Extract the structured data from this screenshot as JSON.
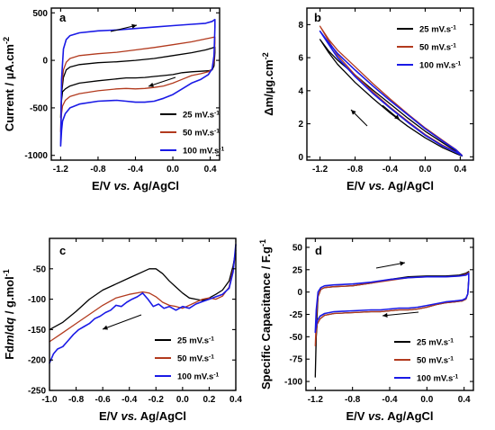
{
  "chart_data": [
    {
      "panel": "a",
      "type": "line",
      "xlabel": "E/V vs. Ag/AgCl",
      "ylabel": "Current / µA.cm-2",
      "xlim": [
        -1.3,
        0.5
      ],
      "ylim": [
        -1050,
        550
      ],
      "xticks": [
        -1.2,
        -0.8,
        -0.4,
        0.0,
        0.4
      ],
      "xtick_labels": [
        "-1.2",
        "-0.8",
        "-0.4",
        "0.0",
        "0.4"
      ],
      "yticks": [
        500,
        0,
        -500,
        -1000
      ],
      "ytick_labels": [
        "500",
        "0",
        "-500",
        "-1000"
      ],
      "legend_position": "bottom-right",
      "series": [
        {
          "name": "25 mV.s-1",
          "color": "#000000",
          "x": [
            -1.2,
            -1.19,
            -1.17,
            -1.14,
            -1.1,
            -1.0,
            -0.8,
            -0.6,
            -0.4,
            -0.2,
            0.0,
            0.2,
            0.35,
            0.42,
            0.45,
            0.45,
            0.44,
            0.42,
            0.38,
            0.3,
            0.2,
            0.1,
            0.0,
            -0.1,
            -0.2,
            -0.3,
            -0.4,
            -0.5,
            -0.6,
            -0.8,
            -1.0,
            -1.1,
            -1.15,
            -1.18,
            -1.19,
            -1.2
          ],
          "y": [
            -600,
            -350,
            -180,
            -100,
            -70,
            -45,
            -25,
            -15,
            0,
            20,
            50,
            80,
            110,
            130,
            140,
            80,
            -60,
            -100,
            -110,
            -115,
            -120,
            -130,
            -150,
            -160,
            -170,
            -180,
            -185,
            -185,
            -195,
            -215,
            -240,
            -270,
            -300,
            -330,
            -420,
            -600
          ]
        },
        {
          "name": "50 mV.s-1",
          "color": "#b23a1e",
          "x": [
            -1.2,
            -1.19,
            -1.17,
            -1.14,
            -1.1,
            -1.0,
            -0.8,
            -0.6,
            -0.4,
            -0.2,
            0.0,
            0.2,
            0.35,
            0.42,
            0.45,
            0.45,
            0.44,
            0.42,
            0.38,
            0.3,
            0.2,
            0.1,
            0.0,
            -0.1,
            -0.2,
            -0.3,
            -0.4,
            -0.5,
            -0.6,
            -0.8,
            -1.0,
            -1.1,
            -1.15,
            -1.18,
            -1.19,
            -1.2
          ],
          "y": [
            -750,
            -300,
            -100,
            -20,
            20,
            50,
            70,
            85,
            110,
            135,
            165,
            195,
            225,
            240,
            245,
            180,
            -10,
            -90,
            -120,
            -140,
            -160,
            -200,
            -240,
            -270,
            -285,
            -295,
            -300,
            -295,
            -300,
            -320,
            -350,
            -380,
            -420,
            -480,
            -560,
            -750
          ]
        },
        {
          "name": "100 mV.s-1",
          "color": "#1a1ae6",
          "x": [
            -1.2,
            -1.19,
            -1.17,
            -1.14,
            -1.1,
            -1.0,
            -0.8,
            -0.6,
            -0.4,
            -0.2,
            0.0,
            0.2,
            0.35,
            0.42,
            0.45,
            0.45,
            0.44,
            0.42,
            0.38,
            0.3,
            0.2,
            0.1,
            0.0,
            -0.1,
            -0.2,
            -0.3,
            -0.4,
            -0.5,
            -0.6,
            -0.8,
            -1.0,
            -1.1,
            -1.15,
            -1.18,
            -1.19,
            -1.2
          ],
          "y": [
            -900,
            -200,
            120,
            220,
            260,
            290,
            310,
            320,
            335,
            350,
            365,
            380,
            390,
            410,
            430,
            350,
            50,
            -90,
            -150,
            -200,
            -240,
            -300,
            -360,
            -400,
            -430,
            -440,
            -440,
            -430,
            -420,
            -430,
            -460,
            -500,
            -560,
            -640,
            -740,
            -900
          ]
        }
      ]
    },
    {
      "panel": "b",
      "type": "line",
      "xlabel": "E/V vs. Ag/AgCl",
      "ylabel": "Δm/µg.cm-2",
      "xlim": [
        -1.35,
        0.55
      ],
      "ylim": [
        -0.2,
        9.0
      ],
      "xticks": [
        -1.2,
        -0.8,
        -0.4,
        0.0,
        0.4
      ],
      "xtick_labels": [
        "-1.2",
        "-0.8",
        "-0.4",
        "0.0",
        "0.4"
      ],
      "yticks": [
        0,
        2,
        4,
        6,
        8
      ],
      "ytick_labels": [
        "0",
        "2",
        "4",
        "6",
        "8"
      ],
      "legend_position": "top-right",
      "series": [
        {
          "name": "25 mV.s-1",
          "color": "#000000",
          "x": [
            -1.2,
            -1.1,
            -1.0,
            -0.8,
            -0.6,
            -0.4,
            -0.2,
            0.0,
            0.2,
            0.35,
            0.42,
            0.42,
            0.35,
            0.2,
            0.0,
            -0.2,
            -0.4,
            -0.6,
            -0.8,
            -1.0,
            -1.1,
            -1.2
          ],
          "y": [
            7.1,
            6.3,
            5.6,
            4.5,
            3.55,
            2.65,
            1.85,
            1.15,
            0.55,
            0.2,
            0.05,
            0.05,
            0.35,
            0.85,
            1.55,
            2.35,
            3.2,
            4.05,
            4.95,
            5.85,
            6.4,
            7.1
          ]
        },
        {
          "name": "50 mV.s-1",
          "color": "#b23a1e",
          "x": [
            -1.2,
            -1.1,
            -1.0,
            -0.8,
            -0.6,
            -0.4,
            -0.2,
            0.0,
            0.2,
            0.35,
            0.42,
            0.42,
            0.35,
            0.2,
            0.0,
            -0.2,
            -0.4,
            -0.6,
            -0.8,
            -1.0,
            -1.1,
            -1.2
          ],
          "y": [
            7.9,
            7.0,
            6.15,
            4.95,
            3.95,
            3.0,
            2.15,
            1.35,
            0.7,
            0.3,
            0.1,
            0.1,
            0.45,
            1.0,
            1.75,
            2.6,
            3.5,
            4.45,
            5.45,
            6.45,
            7.1,
            7.9
          ]
        },
        {
          "name": "100 mV.s-1",
          "color": "#1a1ae6",
          "x": [
            -1.2,
            -1.1,
            -1.0,
            -0.8,
            -0.6,
            -0.4,
            -0.2,
            0.0,
            0.2,
            0.35,
            0.42,
            0.42,
            0.35,
            0.2,
            0.0,
            -0.2,
            -0.4,
            -0.6,
            -0.8,
            -1.0,
            -1.1,
            -1.2
          ],
          "y": [
            7.6,
            6.8,
            6.0,
            4.85,
            3.85,
            2.95,
            2.1,
            1.3,
            0.65,
            0.28,
            0.08,
            0.08,
            0.42,
            0.95,
            1.7,
            2.55,
            3.4,
            4.3,
            5.25,
            6.25,
            6.9,
            7.6
          ]
        }
      ]
    },
    {
      "panel": "c",
      "type": "line",
      "xlabel": "E/V vs. Ag/AgCl",
      "ylabel": "Fdm/dq / g.mol-1",
      "xlim": [
        -1.0,
        0.4
      ],
      "ylim": [
        -250,
        0
      ],
      "xticks": [
        -1.0,
        -0.8,
        -0.6,
        -0.4,
        -0.2,
        0.0,
        0.2,
        0.4
      ],
      "xtick_labels": [
        "-1.0",
        "-0.8",
        "-0.6",
        "-0.4",
        "-0.2",
        "0.0",
        "0.2",
        "0.4"
      ],
      "yticks": [
        -50,
        -100,
        -150,
        -200,
        -250
      ],
      "ytick_labels": [
        "-50",
        "-100",
        "-150",
        "-200",
        "-250"
      ],
      "legend_position": "bottom-right",
      "series": [
        {
          "name": "25 mV.s-1",
          "color": "#000000",
          "x": [
            -1.0,
            -0.9,
            -0.8,
            -0.7,
            -0.6,
            -0.5,
            -0.4,
            -0.3,
            -0.25,
            -0.2,
            -0.15,
            -0.1,
            -0.05,
            0.0,
            0.05,
            0.1,
            0.15,
            0.2,
            0.25,
            0.3,
            0.35,
            0.38,
            0.4
          ],
          "y": [
            -150,
            -138,
            -120,
            -100,
            -85,
            -75,
            -65,
            -55,
            -50,
            -50,
            -58,
            -70,
            -80,
            -90,
            -98,
            -100,
            -102,
            -98,
            -92,
            -85,
            -70,
            -45,
            -20
          ]
        },
        {
          "name": "50 mV.s-1",
          "color": "#b23a1e",
          "x": [
            -1.0,
            -0.9,
            -0.8,
            -0.7,
            -0.6,
            -0.5,
            -0.4,
            -0.3,
            -0.25,
            -0.2,
            -0.15,
            -0.1,
            -0.05,
            0.0,
            0.05,
            0.1,
            0.15,
            0.2,
            0.25,
            0.3,
            0.35,
            0.38,
            0.4
          ],
          "y": [
            -170,
            -155,
            -140,
            -125,
            -110,
            -98,
            -92,
            -88,
            -90,
            -96,
            -105,
            -110,
            -112,
            -115,
            -110,
            -105,
            -100,
            -98,
            -100,
            -95,
            -80,
            -50,
            -25
          ]
        },
        {
          "name": "100 mV.s-1",
          "color": "#1a1ae6",
          "x": [
            -1.0,
            -0.97,
            -0.94,
            -0.9,
            -0.86,
            -0.82,
            -0.78,
            -0.74,
            -0.7,
            -0.66,
            -0.62,
            -0.58,
            -0.54,
            -0.5,
            -0.46,
            -0.42,
            -0.38,
            -0.34,
            -0.3,
            -0.26,
            -0.22,
            -0.18,
            -0.14,
            -0.1,
            -0.05,
            0.0,
            0.05,
            0.1,
            0.15,
            0.2,
            0.25,
            0.3,
            0.35,
            0.38,
            0.4
          ],
          "y": [
            -205,
            -190,
            -182,
            -178,
            -168,
            -158,
            -150,
            -145,
            -140,
            -132,
            -128,
            -122,
            -118,
            -110,
            -112,
            -105,
            -100,
            -96,
            -90,
            -100,
            -112,
            -108,
            -115,
            -112,
            -118,
            -112,
            -115,
            -108,
            -104,
            -100,
            -96,
            -92,
            -82,
            -55,
            -10
          ]
        }
      ]
    },
    {
      "panel": "d",
      "type": "line",
      "xlabel": "E/V vs. Ag/AgCl",
      "ylabel": "Specific Capacitance / F.g-1",
      "xlim": [
        -1.3,
        0.5
      ],
      "ylim": [
        -110,
        60
      ],
      "xticks": [
        -1.2,
        -0.8,
        -0.4,
        0.0,
        0.4
      ],
      "xtick_labels": [
        "-1.2",
        "-0.8",
        "-0.4",
        "0.0",
        "0.4"
      ],
      "yticks": [
        50,
        25,
        0,
        -25,
        -50,
        -75,
        -100
      ],
      "ytick_labels": [
        "50",
        "25",
        "0",
        "-25",
        "-50",
        "-75",
        "-100"
      ],
      "legend_position": "bottom-right",
      "series": [
        {
          "name": "25 mV.s-1",
          "color": "#000000",
          "x": [
            -1.2,
            -1.19,
            -1.17,
            -1.14,
            -1.1,
            -1.0,
            -0.8,
            -0.6,
            -0.4,
            -0.2,
            0.0,
            0.2,
            0.35,
            0.42,
            0.45,
            0.45,
            0.44,
            0.42,
            0.38,
            0.3,
            0.2,
            0.1,
            0.0,
            -0.1,
            -0.2,
            -0.3,
            -0.4,
            -0.5,
            -0.6,
            -0.8,
            -1.0,
            -1.1,
            -1.15,
            -1.18,
            -1.19,
            -1.2
          ],
          "y": [
            -95,
            -45,
            -5,
            3,
            5,
            6,
            7,
            10,
            14,
            17,
            18,
            18,
            19,
            21,
            23,
            15,
            -2,
            -8,
            -10,
            -11,
            -12,
            -14,
            -17,
            -19,
            -20,
            -20,
            -21,
            -22,
            -22,
            -23,
            -24,
            -26,
            -30,
            -36,
            -50,
            -95
          ]
        },
        {
          "name": "50 mV.s-1",
          "color": "#b23a1e",
          "x": [
            -1.2,
            -1.19,
            -1.17,
            -1.14,
            -1.1,
            -1.0,
            -0.8,
            -0.6,
            -0.4,
            -0.2,
            0.0,
            0.2,
            0.35,
            0.42,
            0.45,
            0.45,
            0.44,
            0.42,
            0.38,
            0.3,
            0.2,
            0.1,
            0.0,
            -0.1,
            -0.2,
            -0.3,
            -0.4,
            -0.5,
            -0.6,
            -0.8,
            -1.0,
            -1.1,
            -1.15,
            -1.18,
            -1.19,
            -1.2
          ],
          "y": [
            -60,
            -30,
            -5,
            3,
            5,
            6,
            7,
            10,
            13,
            16,
            17,
            17,
            18,
            20,
            22,
            14,
            -2,
            -8,
            -10,
            -11,
            -12,
            -14,
            -17,
            -19,
            -20,
            -20,
            -21,
            -22,
            -22,
            -23,
            -24,
            -26,
            -30,
            -36,
            -45,
            -60
          ]
        },
        {
          "name": "100 mV.s-1",
          "color": "#1a1ae6",
          "x": [
            -1.2,
            -1.19,
            -1.17,
            -1.14,
            -1.1,
            -1.0,
            -0.8,
            -0.6,
            -0.4,
            -0.2,
            0.0,
            0.2,
            0.35,
            0.42,
            0.45,
            0.45,
            0.44,
            0.42,
            0.38,
            0.3,
            0.2,
            0.1,
            0.0,
            -0.1,
            -0.2,
            -0.3,
            -0.4,
            -0.5,
            -0.6,
            -0.8,
            -1.0,
            -1.1,
            -1.15,
            -1.18,
            -1.19,
            -1.2
          ],
          "y": [
            -45,
            -20,
            0,
            5,
            7,
            8,
            9,
            11,
            14,
            16,
            17,
            17,
            18,
            19,
            21,
            13,
            -2,
            -7,
            -9,
            -10,
            -11,
            -13,
            -15,
            -17,
            -18,
            -18,
            -19,
            -20,
            -20,
            -21,
            -22,
            -24,
            -27,
            -32,
            -38,
            -45
          ]
        }
      ]
    }
  ]
}
